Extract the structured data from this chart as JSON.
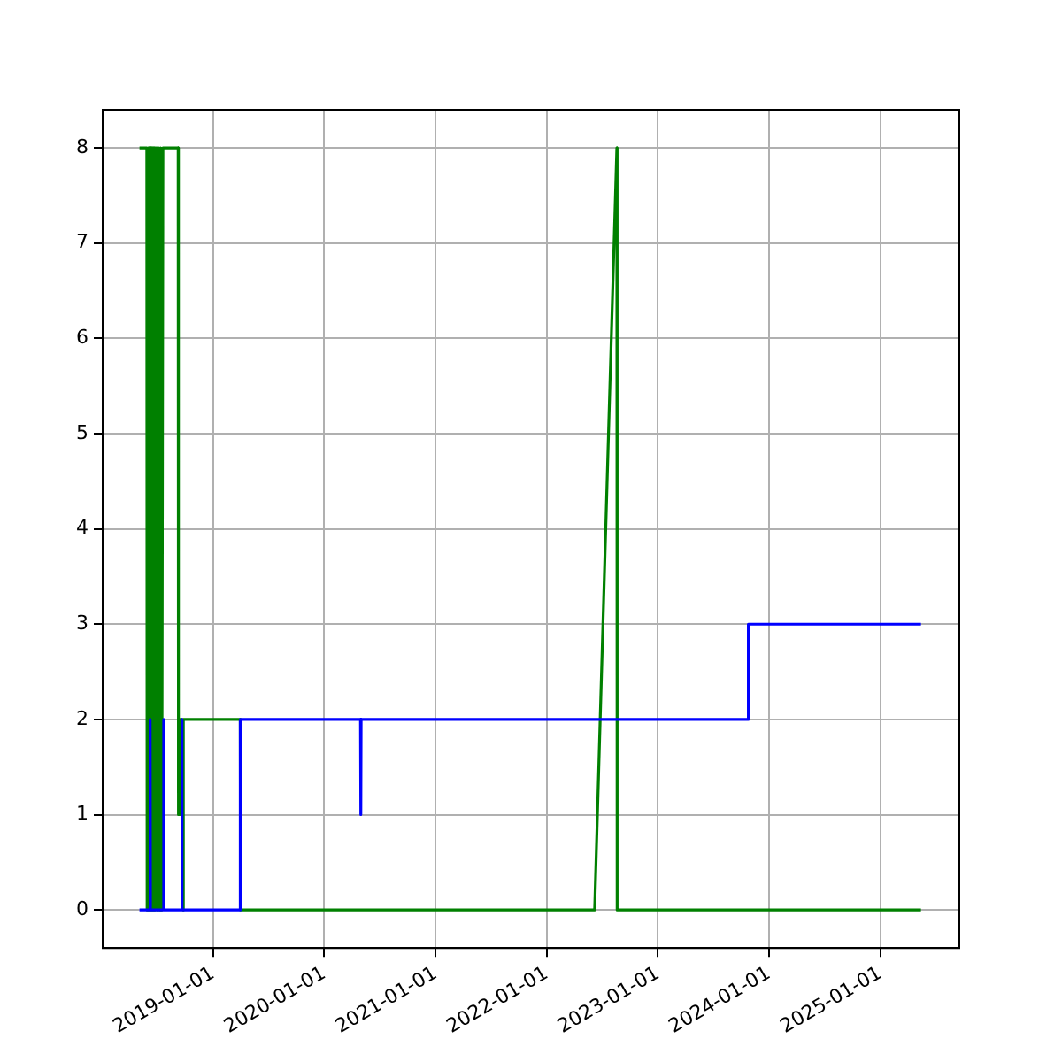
{
  "chart_data": {
    "type": "line",
    "grid": true,
    "legend": false,
    "marker": "none",
    "line_style": "solid",
    "xlim": [
      "2018-01-03",
      "2025-09-17"
    ],
    "ylim": [
      -0.4,
      8.4
    ],
    "xticks": [
      "2019-01-01",
      "2020-01-01",
      "2021-01-01",
      "2022-01-01",
      "2023-01-01",
      "2024-01-01",
      "2025-01-01"
    ],
    "yticks": [
      0,
      1,
      2,
      3,
      4,
      5,
      6,
      7,
      8
    ],
    "series": [
      {
        "color": "#0000ff",
        "x": [
          "2018-05-04",
          "2018-06-08",
          "2018-06-08",
          "2018-06-09",
          "2018-07-22",
          "2018-07-22",
          "2018-07-23",
          "2018-09-20",
          "2018-09-20",
          "2018-09-21",
          "2019-03-30",
          "2019-03-31",
          "2020-04-29",
          "2020-04-30",
          "2020-05-01",
          "2023-10-24",
          "2023-10-25",
          "2025-05-14"
        ],
        "values": [
          0,
          0,
          2,
          0,
          0,
          2,
          0,
          0,
          2,
          0,
          0,
          2,
          2,
          1,
          2,
          2,
          3,
          3
        ]
      },
      {
        "color": "#008000",
        "x": [
          "2018-05-04",
          "2018-05-28",
          "2018-05-29",
          "2018-06-01",
          "2018-06-03",
          "2018-06-05",
          "2018-06-07",
          "2018-06-10",
          "2018-06-12",
          "2018-06-15",
          "2018-06-18",
          "2018-06-21",
          "2018-06-24",
          "2018-06-28",
          "2018-07-02",
          "2018-07-06",
          "2018-07-09",
          "2018-07-12",
          "2018-07-16",
          "2018-07-20",
          "2018-09-08",
          "2018-09-09",
          "2018-09-12",
          "2018-09-14",
          "2018-09-18",
          "2018-09-22",
          "2018-09-23",
          "2018-09-27",
          "2019-03-31",
          "2019-04-01",
          "2022-06-07",
          "2022-08-19",
          "2022-08-20",
          "2025-05-14"
        ],
        "values": [
          8,
          8,
          0,
          8,
          0,
          8,
          0,
          8,
          0,
          8,
          0,
          8,
          0,
          8,
          0,
          8,
          0,
          8,
          0,
          8,
          8,
          1,
          2,
          1,
          2,
          2,
          0,
          2,
          2,
          0,
          0,
          8,
          0,
          0
        ]
      }
    ]
  }
}
